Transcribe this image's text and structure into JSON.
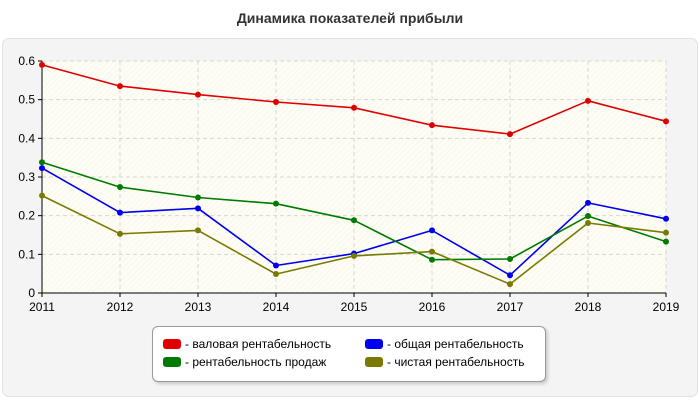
{
  "chart_data": {
    "type": "line",
    "title": "Динамика показателей прибыли",
    "xlabel": "",
    "ylabel": "",
    "x": [
      "2011",
      "2012",
      "2013",
      "2014",
      "2015",
      "2016",
      "2017",
      "2018",
      "2019"
    ],
    "ylim": [
      0,
      0.6
    ],
    "yticks": [
      "0",
      "0.1",
      "0.2",
      "0.3",
      "0.4",
      "0.5",
      "0.6"
    ],
    "grid": true,
    "legend_position": "bottom",
    "series": [
      {
        "name": "- валовая рентабельность",
        "color": "#e00000",
        "values": [
          0.59,
          0.535,
          0.513,
          0.494,
          0.479,
          0.434,
          0.411,
          0.497,
          0.444
        ]
      },
      {
        "name": "- общая рентабельность",
        "color": "#0000ee",
        "values": [
          0.323,
          0.208,
          0.219,
          0.071,
          0.102,
          0.162,
          0.046,
          0.233,
          0.192
        ]
      },
      {
        "name": "- рентабельность продаж",
        "color": "#007a00",
        "values": [
          0.338,
          0.274,
          0.247,
          0.231,
          0.188,
          0.086,
          0.088,
          0.199,
          0.133
        ]
      },
      {
        "name": "- чистая рентабельность",
        "color": "#7a7a00",
        "values": [
          0.252,
          0.153,
          0.162,
          0.049,
          0.096,
          0.107,
          0.023,
          0.181,
          0.156
        ]
      }
    ]
  }
}
